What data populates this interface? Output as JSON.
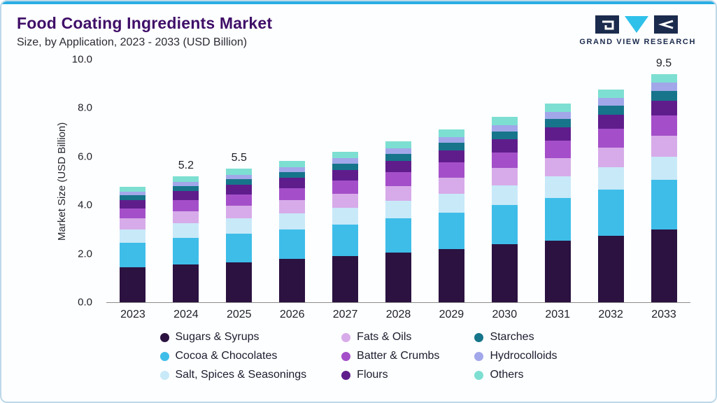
{
  "header": {
    "title": "Food Coating Ingredients Market",
    "subtitle": "Size, by Application, 2023 - 2033 (USD Billion)",
    "brand": "GRAND VIEW RESEARCH"
  },
  "colors": {
    "accent": "#29aee3",
    "title": "#3f0e68",
    "border": "#bdd9ea",
    "logo_navy": "#1b2b4d",
    "logo_cyan": "#2fc1ea"
  },
  "chart_data": {
    "type": "bar",
    "stacked": true,
    "title": "Food Coating Ingredients Market Size, by Application, 2023 - 2033 (USD Billion)",
    "xlabel": "",
    "ylabel": "Market Size (USD Billion)",
    "ylim": [
      0,
      10
    ],
    "yticks": [
      "0.0",
      "2.0",
      "4.0",
      "6.0",
      "8.0",
      "10.0"
    ],
    "grid": false,
    "legend_position": "bottom",
    "categories": [
      "2023",
      "2024",
      "2025",
      "2026",
      "2027",
      "2028",
      "2029",
      "2030",
      "2031",
      "2032",
      "2033"
    ],
    "annotations": {
      "2024": "5.2",
      "2025": "5.5",
      "2033": "9.5"
    },
    "series": [
      {
        "name": "Sugars & Syrups",
        "color": "#2b1240",
        "values": [
          1.45,
          1.55,
          1.65,
          1.8,
          1.9,
          2.05,
          2.2,
          2.4,
          2.55,
          2.75,
          3.0
        ]
      },
      {
        "name": "Cocoa & Chocolates",
        "color": "#3ebde9",
        "values": [
          1.0,
          1.1,
          1.18,
          1.2,
          1.3,
          1.4,
          1.5,
          1.6,
          1.75,
          1.9,
          2.05
        ]
      },
      {
        "name": "Salt, Spices & Seasonings",
        "color": "#c8e9f8",
        "values": [
          0.55,
          0.6,
          0.62,
          0.65,
          0.7,
          0.72,
          0.78,
          0.82,
          0.88,
          0.92,
          0.95
        ]
      },
      {
        "name": "Fats & Oils",
        "color": "#d7abe9",
        "values": [
          0.45,
          0.5,
          0.52,
          0.55,
          0.58,
          0.62,
          0.66,
          0.7,
          0.75,
          0.8,
          0.85
        ]
      },
      {
        "name": "Batter & Crumbs",
        "color": "#a44fc9",
        "values": [
          0.4,
          0.45,
          0.47,
          0.5,
          0.53,
          0.57,
          0.62,
          0.66,
          0.72,
          0.78,
          0.85
        ]
      },
      {
        "name": "Flours",
        "color": "#5f1d8c",
        "values": [
          0.35,
          0.38,
          0.4,
          0.42,
          0.44,
          0.47,
          0.5,
          0.53,
          0.56,
          0.58,
          0.6
        ]
      },
      {
        "name": "Starches",
        "color": "#16758a",
        "values": [
          0.2,
          0.22,
          0.23,
          0.25,
          0.27,
          0.28,
          0.3,
          0.32,
          0.35,
          0.37,
          0.4
        ]
      },
      {
        "name": "Hydrocolloids",
        "color": "#a2a7ea",
        "values": [
          0.15,
          0.17,
          0.18,
          0.2,
          0.21,
          0.23,
          0.25,
          0.27,
          0.29,
          0.32,
          0.35
        ]
      },
      {
        "name": "Others",
        "color": "#7ddfd2",
        "values": [
          0.2,
          0.23,
          0.25,
          0.25,
          0.27,
          0.29,
          0.31,
          0.33,
          0.34,
          0.34,
          0.35
        ]
      }
    ]
  }
}
